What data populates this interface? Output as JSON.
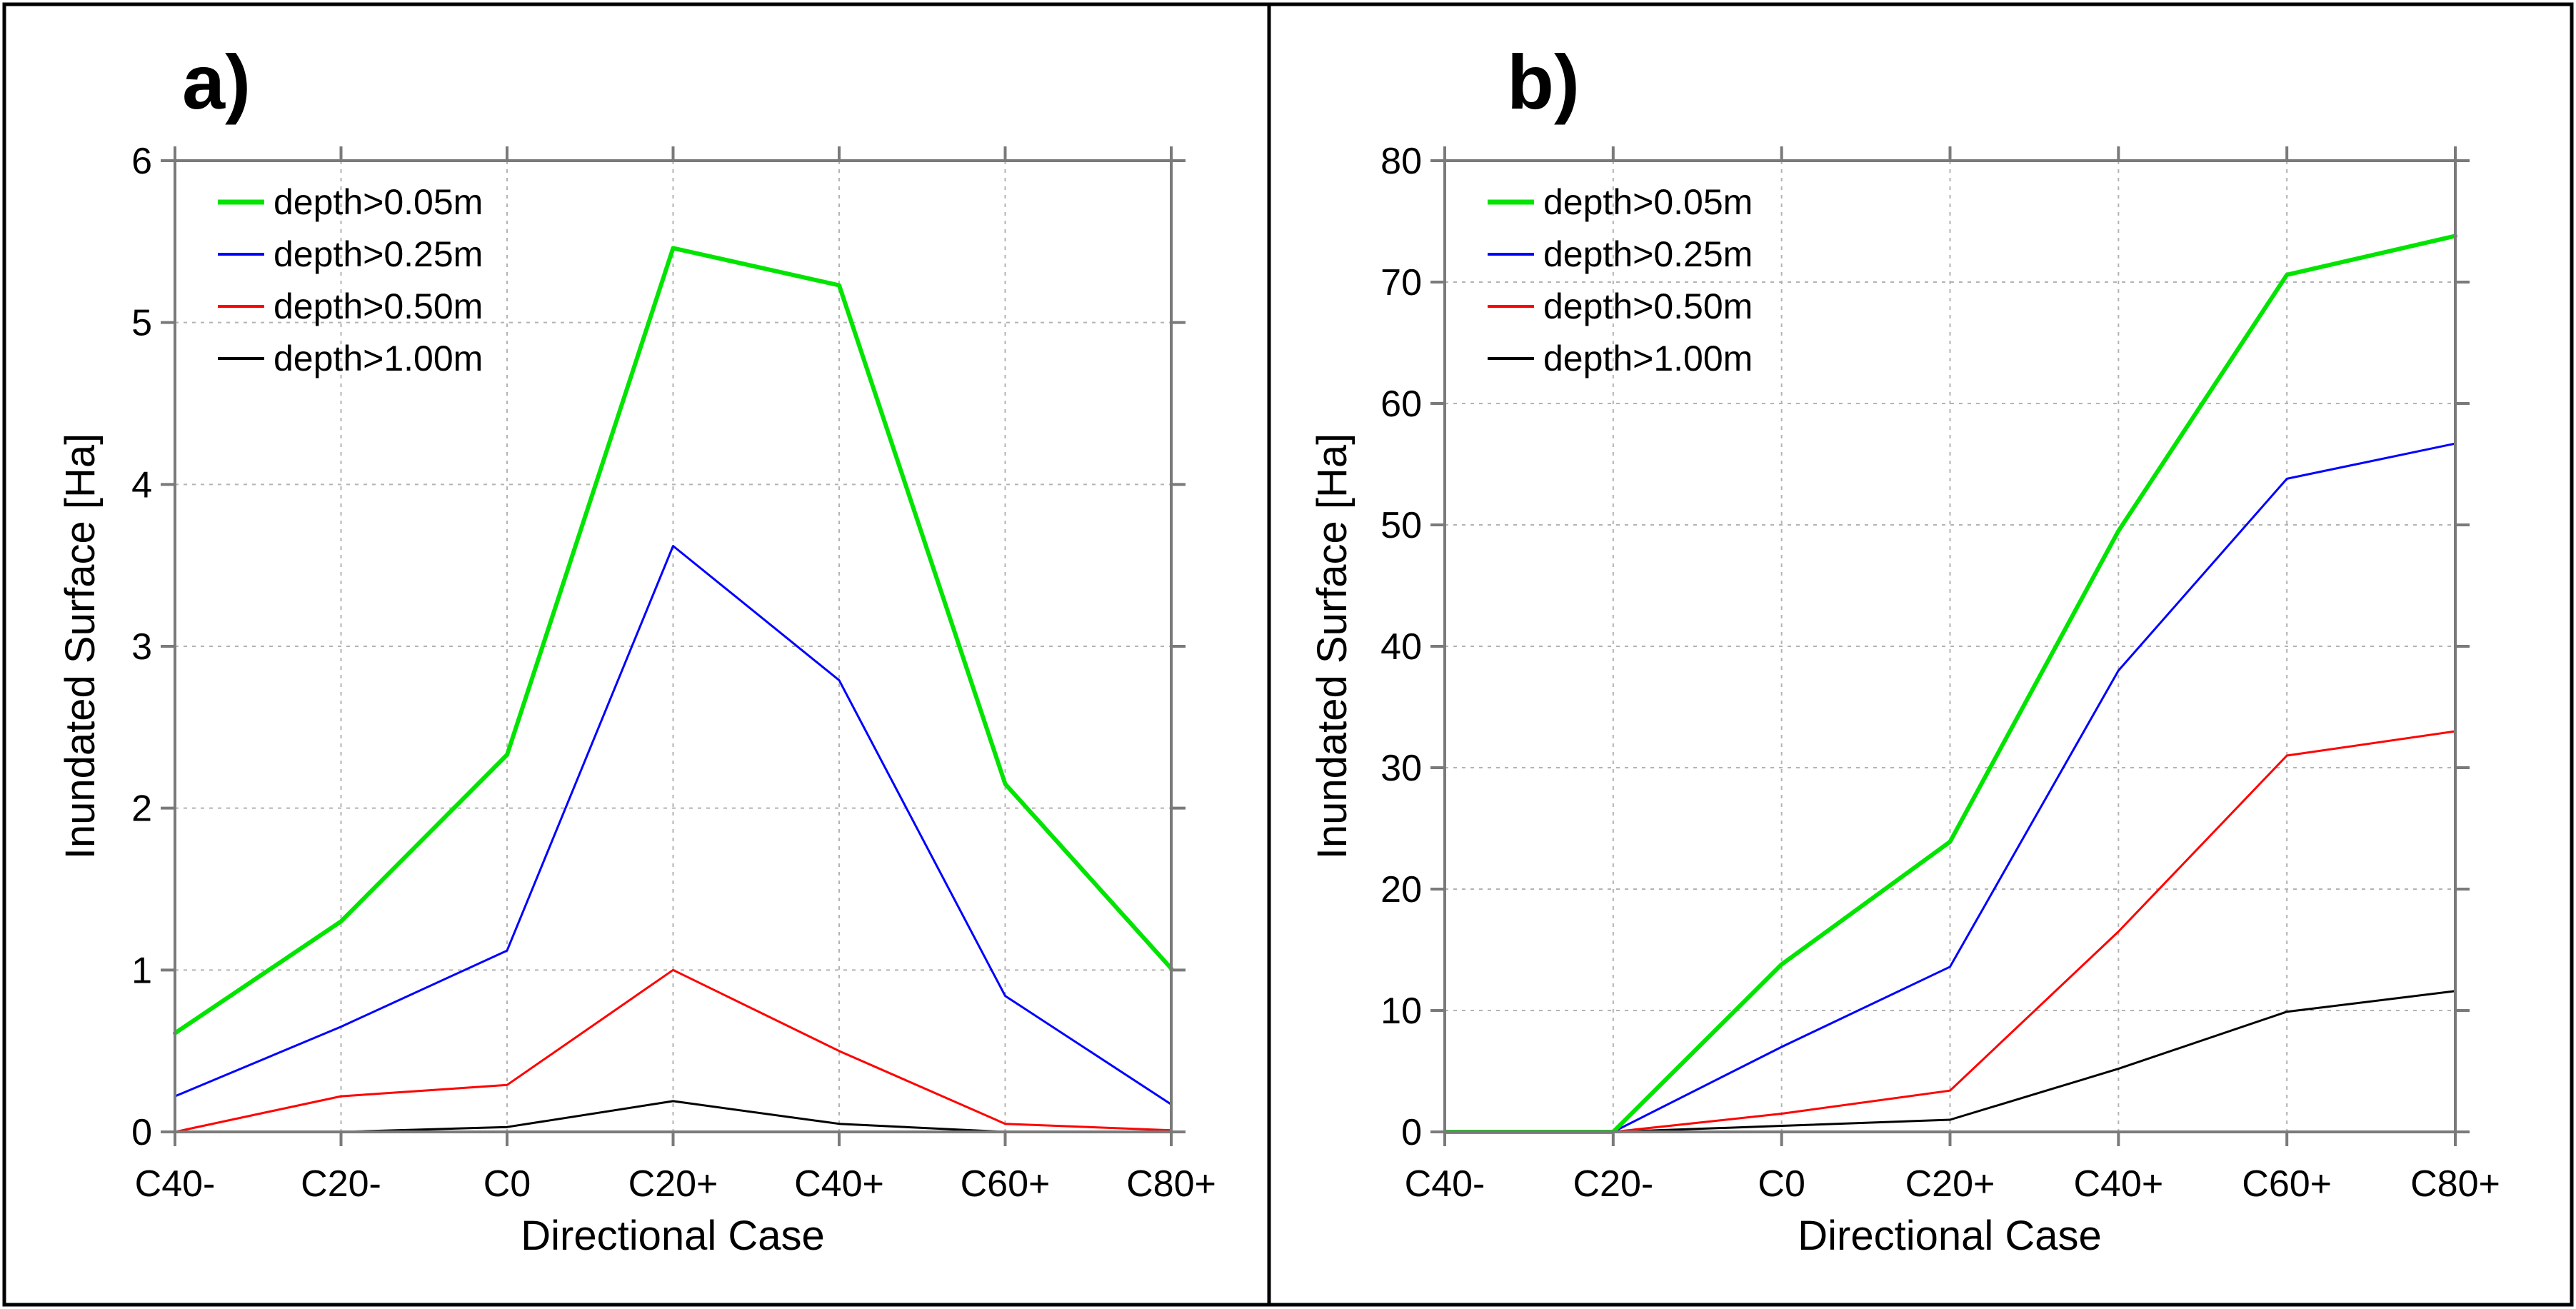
{
  "chart_data": [
    {
      "type": "line",
      "panel_label": "a)",
      "categories": [
        "C40-",
        "C20-",
        "C0",
        "C20+",
        "C40+",
        "C60+",
        "C80+"
      ],
      "xlabel": "Directional Case",
      "ylabel": "Inundated Surface [Ha]",
      "ylim": [
        0,
        6
      ],
      "yticks": [
        0,
        1,
        2,
        3,
        4,
        5,
        6
      ],
      "grid": true,
      "legend_position": "top-left",
      "series": [
        {
          "name": "depth>0.05m",
          "color": "#00e400",
          "width": 6,
          "values": [
            0.61,
            1.3,
            2.33,
            5.46,
            5.23,
            2.15,
            1.01
          ]
        },
        {
          "name": "depth>0.25m",
          "color": "#0000ff",
          "width": 3,
          "values": [
            0.22,
            0.65,
            1.12,
            3.62,
            2.79,
            0.84,
            0.17
          ]
        },
        {
          "name": "depth>0.50m",
          "color": "#ff0000",
          "width": 3,
          "values": [
            0.0,
            0.22,
            0.29,
            1.0,
            0.5,
            0.05,
            0.01
          ]
        },
        {
          "name": "depth>1.00m",
          "color": "#000000",
          "width": 3,
          "values": [
            0.0,
            0.0,
            0.03,
            0.19,
            0.05,
            0.0,
            0.0
          ]
        }
      ]
    },
    {
      "type": "line",
      "panel_label": "b)",
      "categories": [
        "C40-",
        "C20-",
        "C0",
        "C20+",
        "C40+",
        "C60+",
        "C80+"
      ],
      "xlabel": "Directional Case",
      "ylabel": "Inundated Surface [Ha]",
      "ylim": [
        0,
        80
      ],
      "yticks": [
        0,
        10,
        20,
        30,
        40,
        50,
        60,
        70,
        80
      ],
      "grid": true,
      "legend_position": "top-left",
      "series": [
        {
          "name": "depth>0.05m",
          "color": "#00e400",
          "width": 6,
          "values": [
            0.0,
            0.0,
            13.8,
            23.9,
            49.5,
            70.6,
            73.8
          ]
        },
        {
          "name": "depth>0.25m",
          "color": "#0000ff",
          "width": 3,
          "values": [
            0.0,
            0.0,
            7.0,
            13.6,
            38.0,
            53.8,
            56.7
          ]
        },
        {
          "name": "depth>0.50m",
          "color": "#ff0000",
          "width": 3,
          "values": [
            0.0,
            0.0,
            1.5,
            3.4,
            16.5,
            31.0,
            33.0
          ]
        },
        {
          "name": "depth>1.00m",
          "color": "#000000",
          "width": 3,
          "values": [
            0.0,
            0.0,
            0.5,
            1.0,
            5.2,
            9.9,
            11.6
          ]
        }
      ]
    }
  ]
}
